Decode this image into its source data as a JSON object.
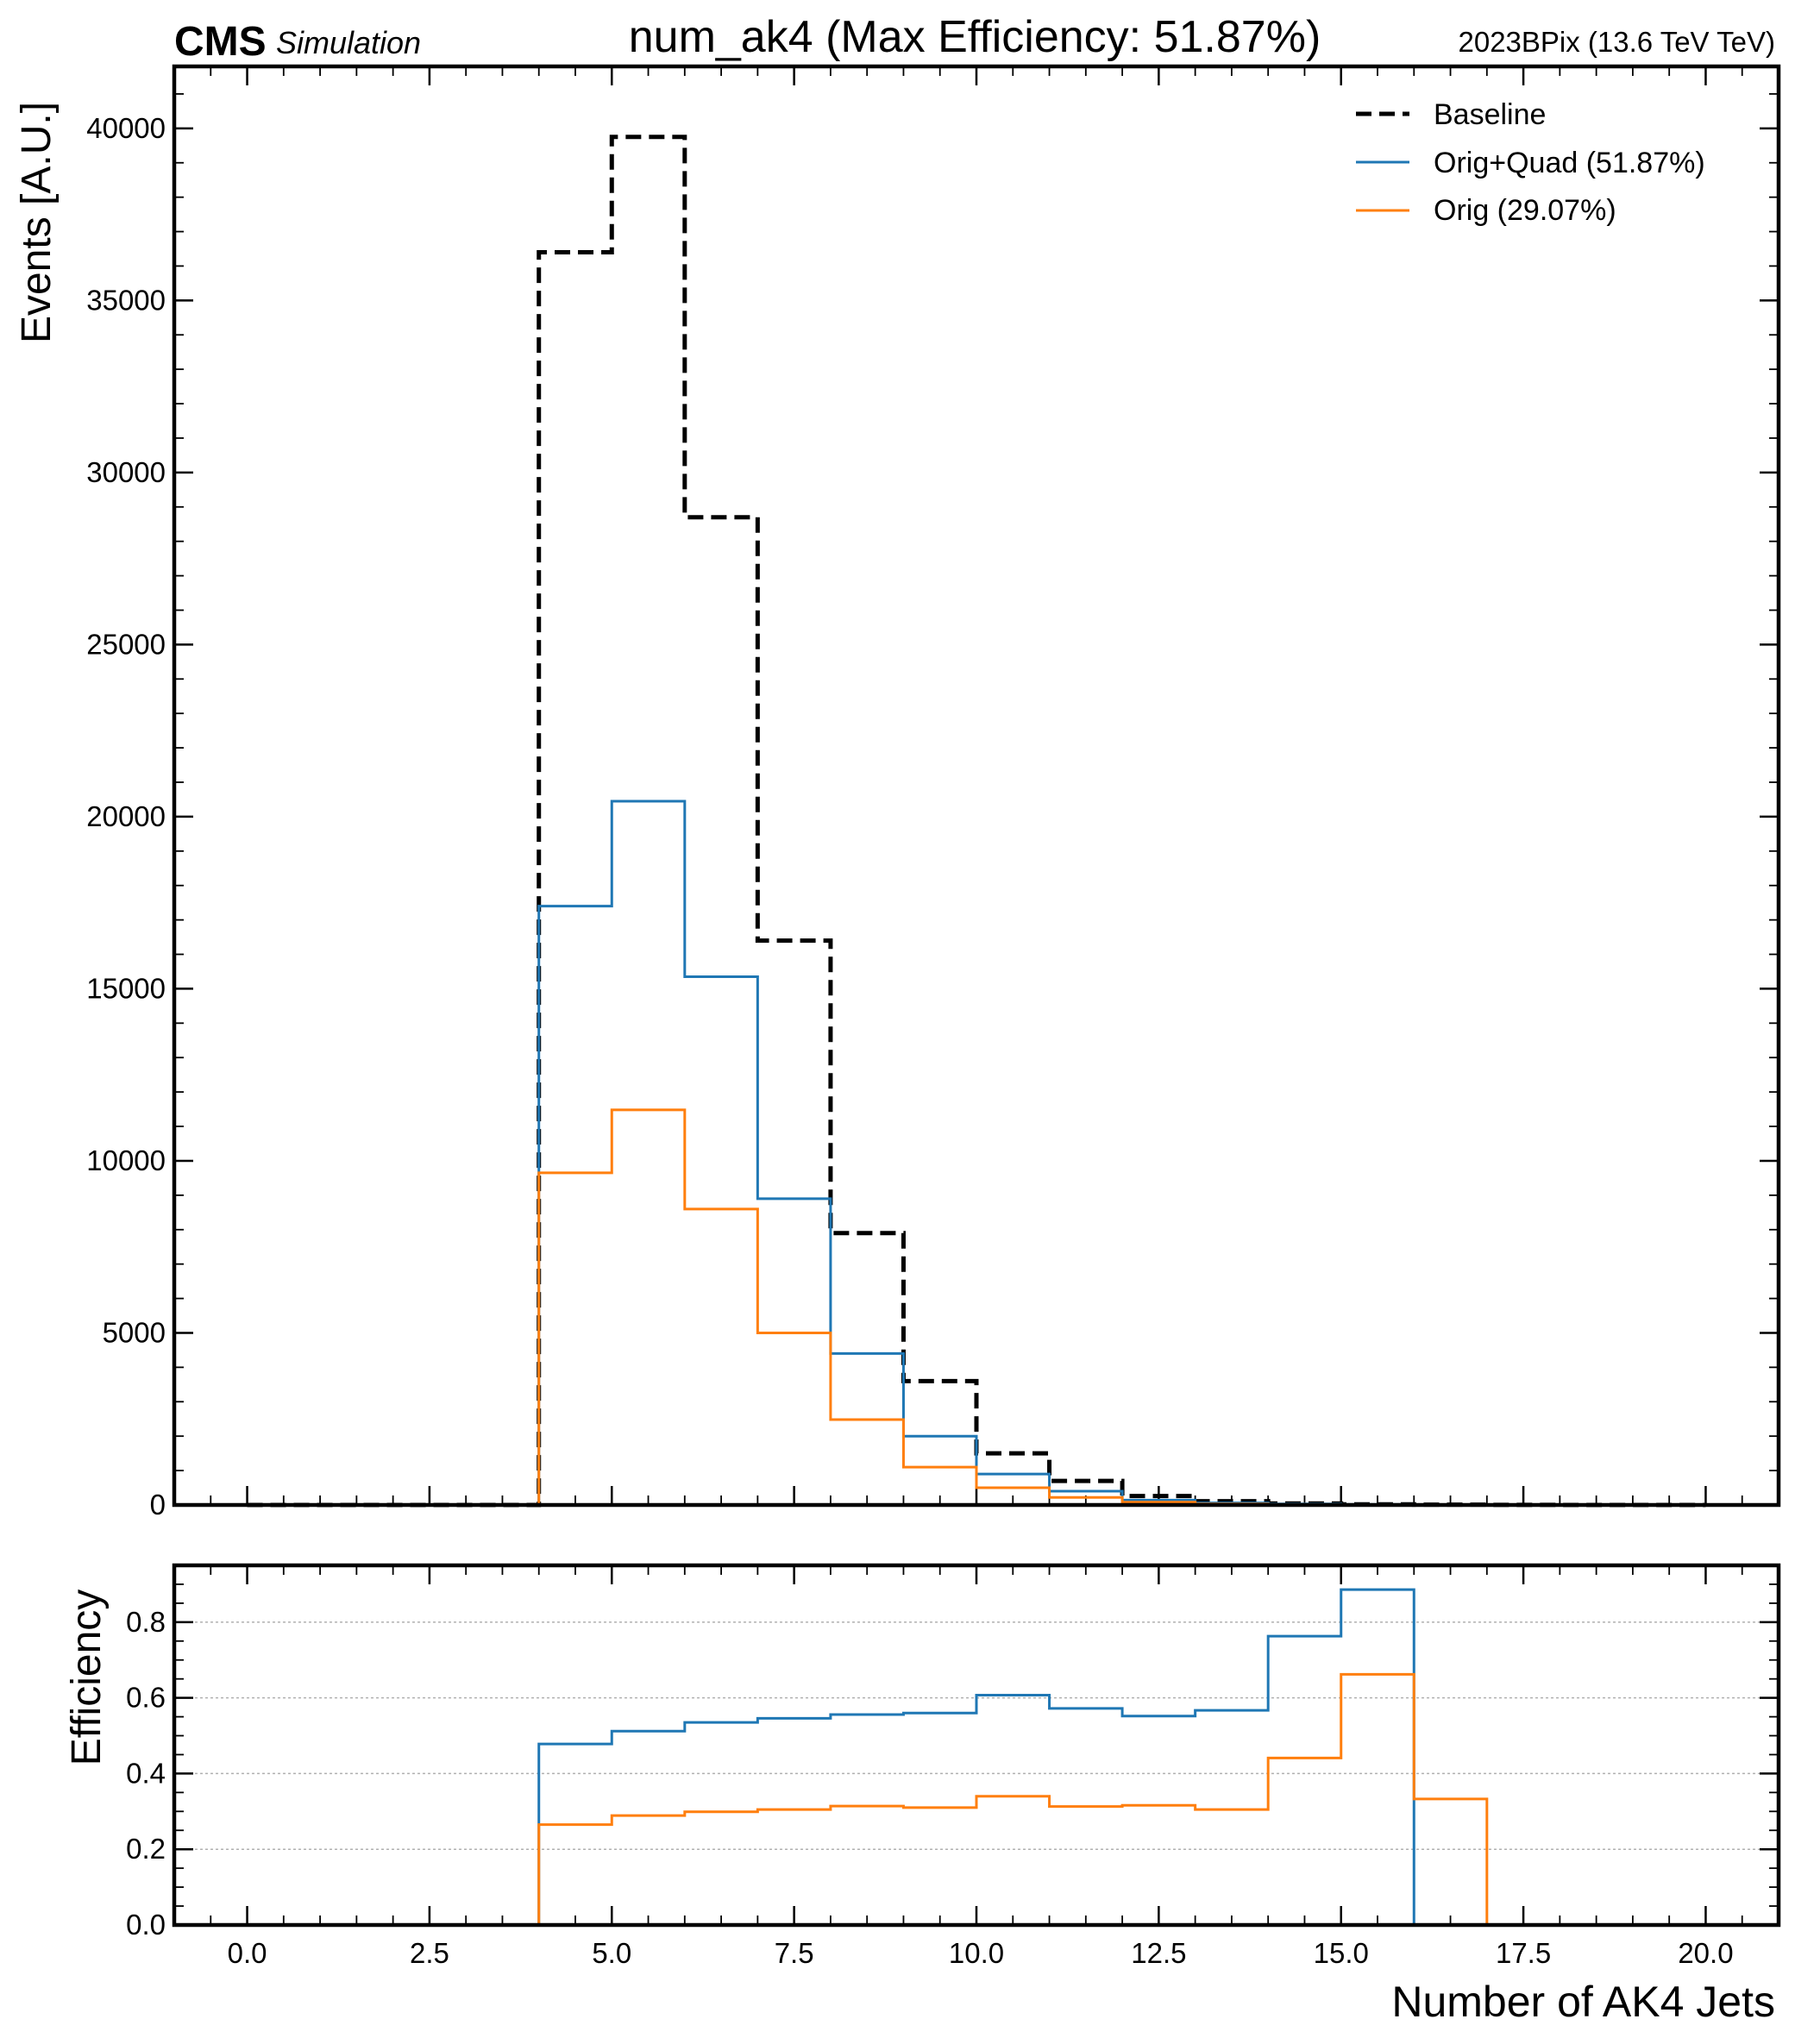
{
  "header": {
    "cms_label": "CMS",
    "simulation_label": "Simulation",
    "title": "num_ak4 (Max Efficiency: 51.87%)",
    "era_label": "2023BPix (13.6 TeV TeV)"
  },
  "chart_data": [
    {
      "type": "line",
      "name": "main",
      "ylabel": "Events [A.U.]",
      "xlabel": "",
      "xlim": [
        -1,
        21
      ],
      "ylim": [
        0,
        41800
      ],
      "xticks": [
        0,
        2.5,
        5,
        7.5,
        10,
        12.5,
        15,
        17.5,
        20
      ],
      "yticks": [
        0,
        5000,
        10000,
        15000,
        20000,
        25000,
        30000,
        35000,
        40000
      ],
      "yminor_step": 1000,
      "xminor_step": 0.5,
      "grid": false,
      "legend_position": "top-right",
      "bin_edges": [
        0,
        1,
        2,
        3,
        4,
        5,
        6,
        7,
        8,
        9,
        10,
        11,
        12,
        13,
        14,
        15,
        16,
        17,
        18,
        19,
        20
      ],
      "series": [
        {
          "name": "Baseline",
          "style": "dashed",
          "color": "#000000",
          "values": [
            0,
            0,
            0,
            0,
            36400,
            39750,
            28700,
            16400,
            7900,
            3600,
            1500,
            700,
            260,
            110,
            45,
            20,
            8,
            4,
            0,
            0
          ]
        },
        {
          "name": "Orig+Quad (51.87%)",
          "style": "solid",
          "color": "#1f77b4",
          "values": [
            0,
            0,
            0,
            0,
            17400,
            20450,
            15350,
            8900,
            4400,
            2000,
            900,
            400,
            140,
            60,
            30,
            15,
            5,
            0,
            0,
            0
          ]
        },
        {
          "name": "Orig (29.07%)",
          "style": "solid",
          "color": "#ff7f0e",
          "values": [
            0,
            0,
            0,
            0,
            9650,
            11480,
            8600,
            5000,
            2480,
            1100,
            500,
            220,
            80,
            30,
            15,
            10,
            3,
            1,
            0,
            0
          ]
        }
      ]
    },
    {
      "type": "line",
      "name": "ratio",
      "ylabel": "Efficiency",
      "xlabel": "Number of AK4 Jets",
      "xlim": [
        -1,
        21
      ],
      "ylim": [
        0,
        0.95
      ],
      "xticks": [
        0,
        2.5,
        5,
        7.5,
        10,
        12.5,
        15,
        17.5,
        20
      ],
      "yticks": [
        0.0,
        0.2,
        0.4,
        0.6,
        0.8
      ],
      "yminor_step": 0.05,
      "xminor_step": 0.5,
      "grid": true,
      "series": [
        {
          "name": "Orig+Quad (51.87%)",
          "color": "#1f77b4",
          "start": 4,
          "values": [
            0.478,
            0.512,
            0.535,
            0.546,
            0.556,
            0.56,
            0.607,
            0.572,
            0.552,
            0.567,
            0.763,
            0.886
          ]
        },
        {
          "name": "Orig (29.07%)",
          "color": "#ff7f0e",
          "start": 4,
          "values": [
            0.265,
            0.289,
            0.299,
            0.305,
            0.314,
            0.31,
            0.34,
            0.313,
            0.316,
            0.305,
            0.441,
            0.662,
            0.333
          ]
        }
      ]
    }
  ]
}
